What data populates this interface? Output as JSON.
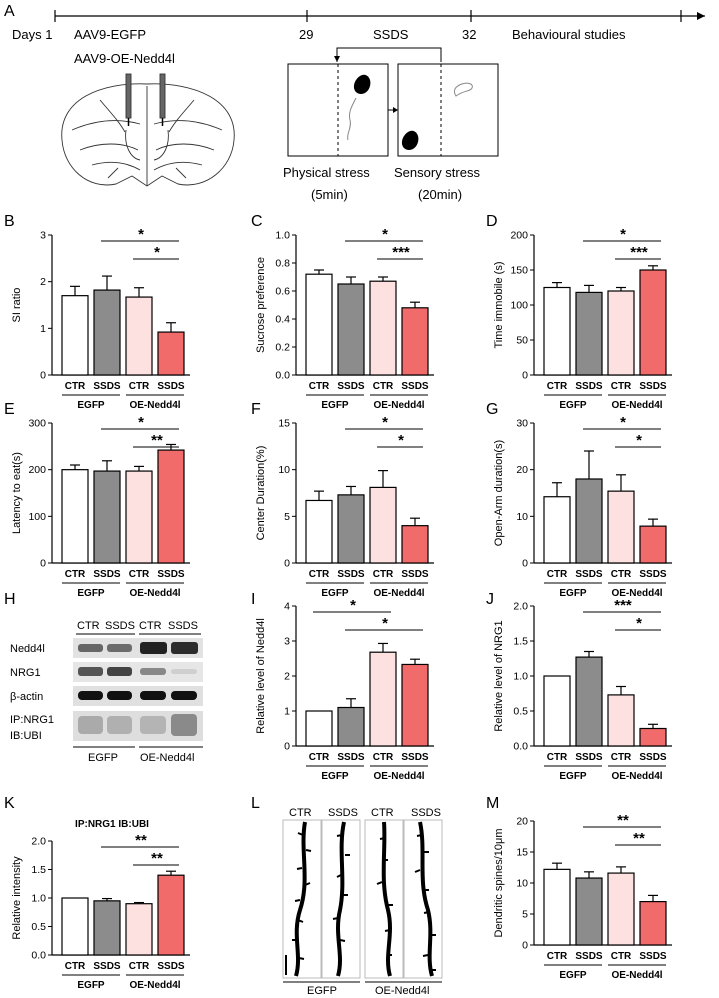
{
  "panel_letters": [
    "A",
    "B",
    "C",
    "D",
    "E",
    "F",
    "G",
    "H",
    "I",
    "J",
    "K",
    "L",
    "M"
  ],
  "timeline": {
    "days_label": "Days 1",
    "virus_1": "AAV9-EGFP",
    "virus_2": "AAV9-OE-Nedd4l",
    "day_29": "29",
    "ssds_label": "SSDS",
    "day_32": "32",
    "behaviour_label": "Behavioural studies",
    "physical_stress": "Physical stress",
    "physical_time": "(5min)",
    "sensory_stress": "Sensory stress",
    "sensory_time": "(20min)"
  },
  "group_labels": {
    "egfp": "EGFP",
    "oe": "OE-Nedd4l"
  },
  "western": {
    "lane_labels": [
      "CTR",
      "SSDS",
      "CTR",
      "SSDS"
    ],
    "band_labels": [
      "Nedd4l",
      "NRG1",
      "β-actin",
      "IP:NRG1",
      "IB:UBI"
    ],
    "group_egfp": "EGFP",
    "group_oe": "OE-Nedd4l"
  },
  "spines": {
    "lane_labels": [
      "CTR",
      "SSDS",
      "CTR",
      "SSDS"
    ],
    "group_egfp": "EGFP",
    "group_oe": "OE-Nedd4l"
  },
  "colors": {
    "ctr_egfp": "#ffffff",
    "ssds_egfp": "#8c8c8c",
    "ctr_oe": "#fde0e0",
    "ssds_oe": "#f26b6b"
  },
  "chart_data": [
    {
      "panel": "B",
      "type": "bar",
      "ylabel": "SI ratio",
      "title": "",
      "categories": [
        "CTR",
        "SSDS",
        "CTR",
        "SSDS"
      ],
      "values": [
        1.7,
        1.82,
        1.67,
        0.92
      ],
      "errors": [
        0.2,
        0.3,
        0.2,
        0.2
      ],
      "ylim": [
        0,
        3
      ],
      "yticks": [
        0,
        1,
        2,
        3
      ],
      "sig": [
        {
          "from": 1,
          "to": 3,
          "label": "*"
        },
        {
          "from": 2,
          "to": 3,
          "label": "*"
        }
      ]
    },
    {
      "panel": "C",
      "type": "bar",
      "ylabel": "Sucrose preference",
      "title": "",
      "categories": [
        "CTR",
        "SSDS",
        "CTR",
        "SSDS"
      ],
      "values": [
        0.72,
        0.65,
        0.67,
        0.48
      ],
      "errors": [
        0.03,
        0.05,
        0.03,
        0.04
      ],
      "ylim": [
        0,
        1.0
      ],
      "yticks": [
        0.0,
        0.2,
        0.4,
        0.6,
        0.8,
        1.0
      ],
      "sig": [
        {
          "from": 1,
          "to": 3,
          "label": "*"
        },
        {
          "from": 2,
          "to": 3,
          "label": "***"
        }
      ]
    },
    {
      "panel": "D",
      "type": "bar",
      "ylabel": "Time immobile (s)",
      "title": "",
      "categories": [
        "CTR",
        "SSDS",
        "CTR",
        "SSDS"
      ],
      "values": [
        125,
        118,
        120,
        150
      ],
      "errors": [
        7,
        10,
        5,
        6
      ],
      "ylim": [
        0,
        200
      ],
      "yticks": [
        0,
        50,
        100,
        150,
        200
      ],
      "sig": [
        {
          "from": 1,
          "to": 3,
          "label": "*"
        },
        {
          "from": 2,
          "to": 3,
          "label": "***"
        }
      ]
    },
    {
      "panel": "E",
      "type": "bar",
      "ylabel": "Latency to eat(s)",
      "title": "",
      "categories": [
        "CTR",
        "SSDS",
        "CTR",
        "SSDS"
      ],
      "values": [
        200,
        197,
        197,
        242
      ],
      "errors": [
        10,
        22,
        10,
        12
      ],
      "ylim": [
        0,
        300
      ],
      "yticks": [
        0,
        100,
        200,
        300
      ],
      "sig": [
        {
          "from": 1,
          "to": 3,
          "label": "*"
        },
        {
          "from": 2,
          "to": 3,
          "label": "**"
        }
      ]
    },
    {
      "panel": "F",
      "type": "bar",
      "ylabel": "Center Duration(%)",
      "title": "",
      "categories": [
        "CTR",
        "SSDS",
        "CTR",
        "SSDS"
      ],
      "values": [
        6.7,
        7.3,
        8.1,
        4.0
      ],
      "errors": [
        1.0,
        0.9,
        1.8,
        0.8
      ],
      "ylim": [
        0,
        15
      ],
      "yticks": [
        0,
        5,
        10,
        15
      ],
      "sig": [
        {
          "from": 1,
          "to": 3,
          "label": "*"
        },
        {
          "from": 2,
          "to": 3,
          "label": "*"
        }
      ]
    },
    {
      "panel": "G",
      "type": "bar",
      "ylabel": "Open-Arm duration(s)",
      "title": "",
      "categories": [
        "CTR",
        "SSDS",
        "CTR",
        "SSDS"
      ],
      "values": [
        14.2,
        18.0,
        15.4,
        7.9
      ],
      "errors": [
        3.0,
        6.0,
        3.5,
        1.5
      ],
      "ylim": [
        0,
        30
      ],
      "yticks": [
        0,
        10,
        20,
        30
      ],
      "sig": [
        {
          "from": 1,
          "to": 3,
          "label": "*"
        },
        {
          "from": 2,
          "to": 3,
          "label": "*"
        }
      ]
    },
    {
      "panel": "I",
      "type": "bar",
      "ylabel": "Relative level of Nedd4l",
      "title": "",
      "categories": [
        "CTR",
        "SSDS",
        "CTR",
        "SSDS"
      ],
      "values": [
        1.0,
        1.1,
        2.68,
        2.33
      ],
      "errors": [
        0,
        0.25,
        0.25,
        0.15
      ],
      "ylim": [
        0,
        4
      ],
      "yticks": [
        0,
        1,
        2,
        3,
        4
      ],
      "sig": [
        {
          "from": 0,
          "to": 2,
          "label": "*"
        },
        {
          "from": 1,
          "to": 3,
          "label": "*"
        }
      ]
    },
    {
      "panel": "J",
      "type": "bar",
      "ylabel": "Relative level of NRG1",
      "title": "",
      "categories": [
        "CTR",
        "SSDS",
        "CTR",
        "SSDS"
      ],
      "values": [
        1.0,
        1.27,
        0.73,
        0.25
      ],
      "errors": [
        0,
        0.08,
        0.12,
        0.06
      ],
      "ylim": [
        0,
        2.0
      ],
      "yticks": [
        0.0,
        0.5,
        1.0,
        1.5,
        2.0
      ],
      "sig": [
        {
          "from": 1,
          "to": 3,
          "label": "***"
        },
        {
          "from": 2,
          "to": 3,
          "label": "*"
        }
      ]
    },
    {
      "panel": "K",
      "type": "bar",
      "ylabel": "Relative intensity",
      "title": "IP:NRG1 IB:UBI",
      "categories": [
        "CTR",
        "SSDS",
        "CTR",
        "SSDS"
      ],
      "values": [
        1.0,
        0.95,
        0.9,
        1.4
      ],
      "errors": [
        0,
        0.04,
        0.02,
        0.07
      ],
      "ylim": [
        0,
        2.0
      ],
      "yticks": [
        0.0,
        0.5,
        1.0,
        1.5,
        2.0
      ],
      "sig": [
        {
          "from": 1,
          "to": 3,
          "label": "**"
        },
        {
          "from": 2,
          "to": 3,
          "label": "**"
        }
      ]
    },
    {
      "panel": "M",
      "type": "bar",
      "ylabel": "Dendritic spines/10μm",
      "title": "",
      "categories": [
        "CTR",
        "SSDS",
        "CTR",
        "SSDS"
      ],
      "values": [
        12.2,
        10.8,
        11.6,
        7.0
      ],
      "errors": [
        1.0,
        1.0,
        1.0,
        1.0
      ],
      "ylim": [
        0,
        20
      ],
      "yticks": [
        0,
        5,
        10,
        15,
        20
      ],
      "sig": [
        {
          "from": 1,
          "to": 3,
          "label": "**"
        },
        {
          "from": 2,
          "to": 3,
          "label": "**"
        }
      ]
    }
  ]
}
